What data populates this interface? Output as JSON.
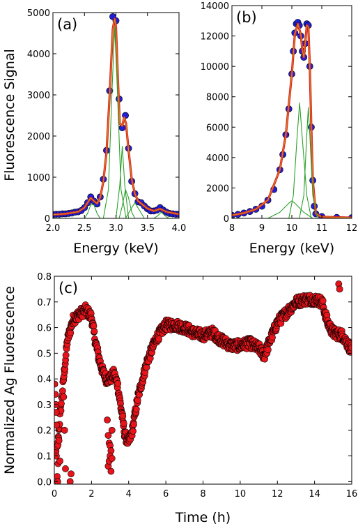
{
  "chart_data": [
    {
      "type": "scatter",
      "panel_label": "(a)",
      "xlabel": "Energy (keV)",
      "ylabel": "Fluorescence Signal",
      "xlim": [
        2.0,
        4.0
      ],
      "ylim": [
        0,
        5000
      ],
      "xticks": [
        "2.0",
        "2.5",
        "3.0",
        "3.5",
        "4.0"
      ],
      "yticks": [
        "0",
        "1000",
        "2000",
        "3000",
        "4000",
        "5000"
      ],
      "colors": {
        "data": "#1f1fd6",
        "fit": "#e02020",
        "total": "#d08a20",
        "components": "#2aa02a"
      },
      "series": [
        {
          "kind": "points",
          "x": [
            2.0,
            2.05,
            2.1,
            2.15,
            2.2,
            2.25,
            2.3,
            2.35,
            2.4,
            2.45,
            2.5,
            2.55,
            2.6,
            2.65,
            2.7,
            2.75,
            2.8,
            2.85,
            2.9,
            2.95,
            3.0,
            3.05,
            3.1,
            3.15,
            3.2,
            3.25,
            3.3,
            3.35,
            3.4,
            3.45,
            3.5,
            3.55,
            3.6,
            3.65,
            3.7,
            3.75,
            3.8,
            3.85,
            3.9,
            3.95,
            4.0
          ],
          "y": [
            90,
            100,
            100,
            110,
            110,
            120,
            130,
            150,
            160,
            190,
            260,
            380,
            520,
            420,
            350,
            520,
            950,
            1650,
            3100,
            4900,
            4800,
            2900,
            2200,
            2500,
            1700,
            900,
            600,
            400,
            380,
            300,
            230,
            180,
            180,
            200,
            260,
            200,
            150,
            120,
            110,
            100,
            100
          ]
        },
        {
          "kind": "line",
          "role": "fit",
          "x": [
            2.0,
            2.2,
            2.4,
            2.5,
            2.55,
            2.6,
            2.65,
            2.7,
            2.75,
            2.8,
            2.85,
            2.9,
            2.95,
            2.98,
            3.0,
            3.03,
            3.06,
            3.1,
            3.13,
            3.16,
            3.2,
            3.25,
            3.3,
            3.35,
            3.4,
            3.5,
            3.6,
            3.7,
            3.8,
            4.0
          ],
          "y": [
            90,
            110,
            160,
            260,
            380,
            500,
            420,
            360,
            500,
            900,
            1600,
            3000,
            4600,
            4850,
            4650,
            3400,
            2300,
            2250,
            2450,
            2300,
            1650,
            950,
            600,
            420,
            360,
            240,
            180,
            230,
            160,
            100
          ]
        },
        {
          "kind": "line",
          "role": "component",
          "x": [
            2.5,
            2.55,
            2.6,
            2.65,
            2.7,
            2.75
          ],
          "y": [
            0,
            120,
            330,
            330,
            120,
            0
          ]
        },
        {
          "kind": "line",
          "role": "component",
          "x": [
            2.8,
            2.88,
            2.94,
            2.98,
            3.02,
            3.08,
            3.16
          ],
          "y": [
            0,
            700,
            3200,
            4650,
            3200,
            700,
            0
          ]
        },
        {
          "kind": "line",
          "role": "component",
          "x": [
            3.0,
            3.06,
            3.1,
            3.14,
            3.2
          ],
          "y": [
            0,
            800,
            1750,
            800,
            0
          ]
        },
        {
          "kind": "line",
          "role": "component",
          "x": [
            3.05,
            3.1,
            3.15,
            3.2,
            3.25,
            3.3
          ],
          "y": [
            0,
            300,
            700,
            500,
            150,
            0
          ]
        },
        {
          "kind": "line",
          "role": "component",
          "x": [
            3.15,
            3.22,
            3.3,
            3.38,
            3.45
          ],
          "y": [
            0,
            180,
            380,
            180,
            0
          ]
        },
        {
          "kind": "line",
          "role": "component",
          "x": [
            3.6,
            3.66,
            3.72,
            3.78,
            3.84
          ],
          "y": [
            0,
            60,
            150,
            60,
            0
          ]
        }
      ]
    },
    {
      "type": "scatter",
      "panel_label": "(b)",
      "xlabel": "Energy (keV)",
      "ylabel": "",
      "xlim": [
        8,
        12
      ],
      "ylim": [
        0,
        14000
      ],
      "xticks": [
        "8",
        "9",
        "10",
        "11",
        "12"
      ],
      "yticks": [
        "0",
        "2000",
        "4000",
        "6000",
        "8000",
        "10000",
        "12000",
        "14000"
      ],
      "colors": {
        "data": "#1f1fd6",
        "fit": "#e02020",
        "total": "#d08a20",
        "components": "#2aa02a"
      },
      "series": [
        {
          "kind": "points",
          "x": [
            8.0,
            8.2,
            8.4,
            8.6,
            8.8,
            9.0,
            9.2,
            9.4,
            9.6,
            9.7,
            9.8,
            9.9,
            10.0,
            10.05,
            10.1,
            10.15,
            10.2,
            10.25,
            10.3,
            10.35,
            10.4,
            10.45,
            10.5,
            10.55,
            10.6,
            10.65,
            10.7,
            10.75,
            10.8,
            11.0,
            11.5,
            12.0
          ],
          "y": [
            200,
            260,
            350,
            450,
            600,
            800,
            1200,
            1900,
            3200,
            4200,
            5500,
            7200,
            9500,
            11000,
            12200,
            12800,
            12900,
            12700,
            12000,
            11000,
            10600,
            11500,
            12800,
            12700,
            10000,
            6000,
            2500,
            800,
            300,
            120,
            60,
            40
          ]
        },
        {
          "kind": "line",
          "role": "fit",
          "x": [
            8.0,
            8.4,
            8.8,
            9.2,
            9.6,
            9.8,
            10.0,
            10.1,
            10.2,
            10.3,
            10.35,
            10.4,
            10.45,
            10.5,
            10.55,
            10.6,
            10.65,
            10.7,
            10.8,
            11.0,
            12.0
          ],
          "y": [
            200,
            350,
            600,
            1200,
            3200,
            5500,
            9500,
            12100,
            12800,
            12100,
            11100,
            10600,
            11600,
            12700,
            12600,
            10000,
            6000,
            2500,
            300,
            100,
            40
          ]
        },
        {
          "kind": "line",
          "role": "component",
          "x": [
            9.2,
            9.6,
            9.9,
            10.0,
            10.1,
            10.4,
            10.7
          ],
          "y": [
            0,
            400,
            1000,
            1150,
            1000,
            400,
            0
          ]
        },
        {
          "kind": "line",
          "role": "component",
          "x": [
            9.9,
            10.05,
            10.18,
            10.26,
            10.34,
            10.5,
            10.65
          ],
          "y": [
            0,
            1500,
            5500,
            7600,
            5500,
            1500,
            0
          ]
        },
        {
          "kind": "line",
          "role": "component",
          "x": [
            10.25,
            10.4,
            10.5,
            10.55,
            10.6,
            10.7,
            10.85
          ],
          "y": [
            0,
            1500,
            5500,
            7300,
            5500,
            1500,
            0
          ]
        }
      ]
    },
    {
      "type": "scatter",
      "panel_label": "(c)",
      "xlabel": "Time (h)",
      "ylabel": "Normalized Ag Fluorescence",
      "xlim": [
        0,
        16
      ],
      "ylim": [
        -0.01,
        0.8
      ],
      "xticks": [
        "0",
        "2",
        "4",
        "6",
        "8",
        "10",
        "12",
        "14",
        "16"
      ],
      "yticks": [
        "0.0",
        "0.1",
        "0.2",
        "0.3",
        "0.4",
        "0.5",
        "0.6",
        "0.7",
        "0.8"
      ],
      "colors": {
        "points": "#e8141b",
        "edge": "#000000"
      },
      "trend": {
        "x": [
          0,
          0.1,
          0.2,
          0.3,
          0.5,
          0.7,
          1.0,
          1.3,
          1.7,
          2.0,
          2.2,
          2.4,
          2.6,
          2.8,
          3.0,
          3.2,
          3.4,
          3.6,
          3.8,
          4.0,
          4.2,
          4.5,
          5.0,
          5.5,
          6.0,
          6.5,
          7.0,
          7.5,
          8.0,
          8.5,
          9.0,
          9.5,
          10.0,
          10.5,
          11.0,
          11.3,
          11.6,
          12.0,
          12.5,
          13.0,
          13.5,
          14.0,
          14.4,
          14.7,
          15.0,
          15.5,
          16.0
        ],
        "y": [
          0.12,
          0.11,
          0.15,
          0.25,
          0.4,
          0.55,
          0.63,
          0.65,
          0.67,
          0.64,
          0.55,
          0.48,
          0.43,
          0.4,
          0.4,
          0.42,
          0.38,
          0.28,
          0.18,
          0.15,
          0.2,
          0.33,
          0.47,
          0.56,
          0.61,
          0.61,
          0.6,
          0.58,
          0.57,
          0.58,
          0.55,
          0.53,
          0.53,
          0.54,
          0.52,
          0.49,
          0.55,
          0.62,
          0.66,
          0.7,
          0.71,
          0.71,
          0.7,
          0.62,
          0.58,
          0.57,
          0.51
        ]
      },
      "outliers": {
        "x": [
          0.02,
          0.05,
          0.08,
          0.1,
          0.12,
          0.15,
          0.18,
          0.2,
          0.25,
          0.3,
          0.5,
          0.55,
          0.6,
          0.85,
          0.9,
          2.85,
          2.9,
          2.95,
          3.0,
          3.05,
          3.1,
          2.9,
          2.95,
          3.0,
          3.05,
          3.1,
          15.3,
          15.35
        ],
        "y": [
          0.38,
          0.34,
          0.3,
          0.27,
          0.22,
          0.02,
          0.0,
          0.07,
          0.16,
          0.08,
          0.33,
          0.2,
          0.05,
          0.0,
          0.03,
          0.24,
          0.18,
          0.15,
          0.14,
          0.12,
          0.2,
          0.06,
          0.08,
          0.1,
          0.04,
          0.09,
          0.77,
          0.75
        ]
      }
    }
  ]
}
